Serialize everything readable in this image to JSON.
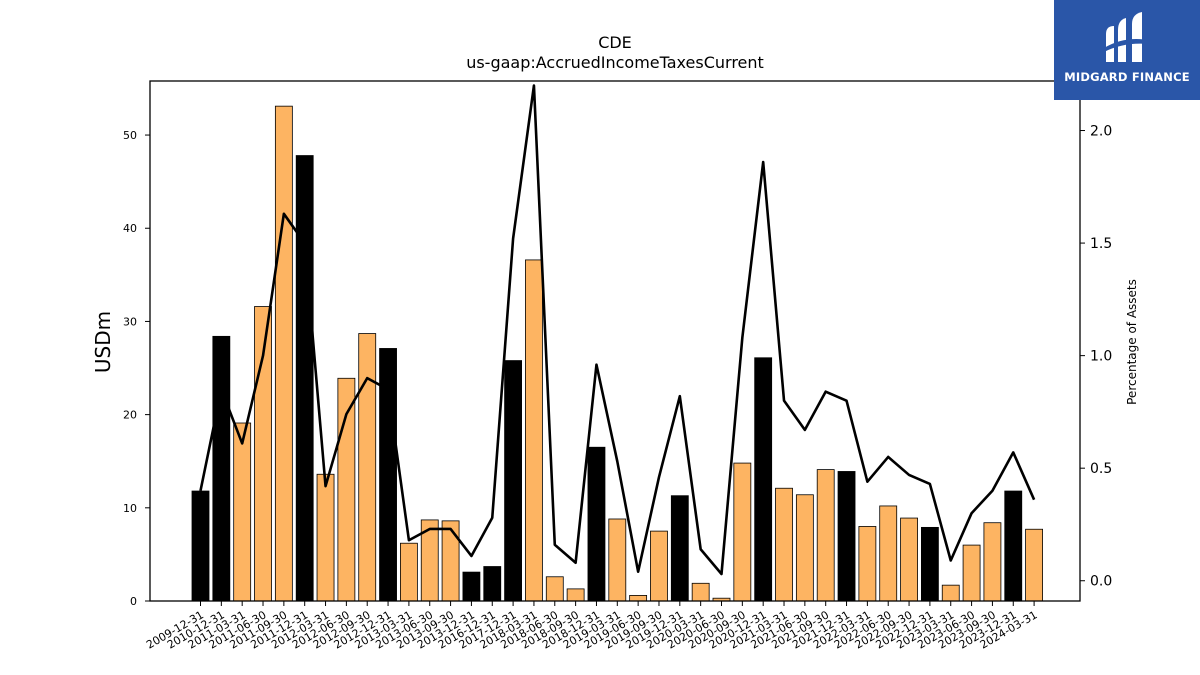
{
  "brand": {
    "name": "MIDGARD FINANCE",
    "logo_icon": "midgard-m-logo-icon",
    "background": "#2a56a8"
  },
  "chart_data": {
    "type": "bar+line",
    "title": "CDE",
    "subtitle": "us-gaap:AccruedIncomeTaxesCurrent",
    "ylabel": "USDm",
    "y2label": "Percentage of Assets",
    "ylim": [
      0,
      55.8
    ],
    "y2lim": [
      -0.09,
      2.22
    ],
    "yticks": [
      0,
      10,
      20,
      30,
      40,
      50
    ],
    "y2ticks": [
      0.0,
      0.5,
      1.0,
      1.5,
      2.0
    ],
    "grid": false,
    "colors": {
      "annual_bar": "#000000",
      "quarter_bar": "#fdb462",
      "line": "#000000"
    },
    "categories": [
      "2009-12-31",
      "2010-12-31",
      "2011-03-31",
      "2011-06-30",
      "2011-09-30",
      "2011-12-31",
      "2012-03-31",
      "2012-06-30",
      "2012-09-30",
      "2012-12-31",
      "2013-03-31",
      "2013-06-30",
      "2013-09-30",
      "2013-12-31",
      "2016-12-31",
      "2017-12-31",
      "2018-03-31",
      "2018-06-30",
      "2018-09-30",
      "2018-12-31",
      "2019-03-31",
      "2019-06-30",
      "2019-09-30",
      "2019-12-31",
      "2020-03-31",
      "2020-06-30",
      "2020-09-30",
      "2020-12-31",
      "2021-03-31",
      "2021-06-30",
      "2021-09-30",
      "2021-12-31",
      "2022-03-31",
      "2022-06-30",
      "2022-09-30",
      "2022-12-31",
      "2023-03-31",
      "2023-06-30",
      "2023-09-30",
      "2023-12-31",
      "2024-03-31"
    ],
    "series": [
      {
        "kind": "bar",
        "axis": "left",
        "values": [
          11.8,
          28.4,
          19.1,
          31.6,
          53.1,
          47.8,
          13.6,
          23.9,
          28.7,
          27.1,
          6.2,
          8.7,
          8.6,
          3.1,
          3.7,
          25.8,
          36.6,
          2.6,
          1.3,
          16.5,
          8.8,
          0.6,
          7.5,
          11.3,
          1.9,
          0.3,
          14.8,
          26.1,
          12.1,
          11.4,
          14.1,
          13.9,
          8.0,
          10.2,
          8.9,
          7.9,
          1.7,
          6.0,
          8.4,
          11.8,
          7.7
        ],
        "annual": [
          true,
          true,
          false,
          false,
          false,
          true,
          false,
          false,
          false,
          true,
          false,
          false,
          false,
          true,
          true,
          true,
          false,
          false,
          false,
          true,
          false,
          false,
          false,
          true,
          false,
          false,
          false,
          true,
          false,
          false,
          false,
          true,
          false,
          false,
          false,
          true,
          false,
          false,
          false,
          true,
          false
        ]
      },
      {
        "kind": "line",
        "axis": "right",
        "values": [
          0.4,
          0.85,
          0.61,
          1.0,
          1.63,
          1.5,
          0.42,
          0.74,
          0.9,
          0.85,
          0.18,
          0.23,
          0.23,
          0.11,
          0.28,
          1.52,
          2.2,
          0.16,
          0.08,
          0.96,
          0.53,
          0.04,
          0.46,
          0.82,
          0.14,
          0.03,
          1.08,
          1.86,
          0.8,
          0.67,
          0.84,
          0.8,
          0.44,
          0.55,
          0.47,
          0.43,
          0.09,
          0.3,
          0.4,
          0.57,
          0.36
        ]
      }
    ]
  }
}
